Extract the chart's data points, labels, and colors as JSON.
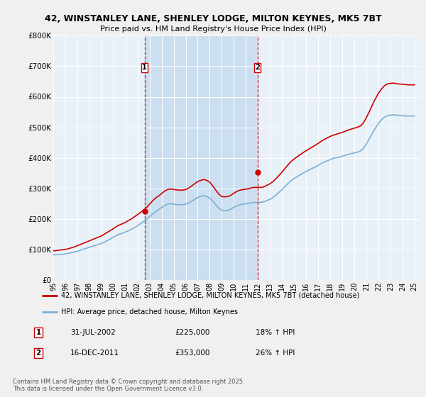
{
  "title": "42, WINSTANLEY LANE, SHENLEY LODGE, MILTON KEYNES, MK5 7BT",
  "subtitle": "Price paid vs. HM Land Registry's House Price Index (HPI)",
  "ylim": [
    0,
    800000
  ],
  "yticks": [
    0,
    100000,
    200000,
    300000,
    400000,
    500000,
    600000,
    700000,
    800000
  ],
  "ytick_labels": [
    "£0",
    "£100K",
    "£200K",
    "£300K",
    "£400K",
    "£500K",
    "£600K",
    "£700K",
    "£800K"
  ],
  "xlim_start": 1995.0,
  "xlim_end": 2025.5,
  "background_color": "#f0f0f0",
  "plot_bg_color": "#e8f0f8",
  "grid_color": "#ffffff",
  "red_line_color": "#cc0000",
  "blue_line_color": "#7db0d4",
  "shade_color": "#ccdff0",
  "marker1_x": 2002.58,
  "marker1_y": 225000,
  "marker1_label": "1",
  "marker1_date": "31-JUL-2002",
  "marker1_price": "£225,000",
  "marker1_hpi": "18% ↑ HPI",
  "marker2_x": 2011.96,
  "marker2_y": 353000,
  "marker2_label": "2",
  "marker2_date": "16-DEC-2011",
  "marker2_price": "£353,000",
  "marker2_hpi": "26% ↑ HPI",
  "legend_line1": "42, WINSTANLEY LANE, SHENLEY LODGE, MILTON KEYNES, MK5 7BT (detached house)",
  "legend_line2": "HPI: Average price, detached house, Milton Keynes",
  "footnote": "Contains HM Land Registry data © Crown copyright and database right 2025.\nThis data is licensed under the Open Government Licence v3.0.",
  "hpi_values": [
    82000,
    82500,
    83000,
    84000,
    85000,
    87000,
    89000,
    91500,
    94000,
    97000,
    100500,
    103500,
    107000,
    110000,
    113000,
    116000,
    119500,
    124000,
    129000,
    134500,
    140000,
    145500,
    150000,
    153000,
    157000,
    161000,
    166000,
    171500,
    177000,
    184000,
    191500,
    198500,
    207000,
    216000,
    224000,
    230000,
    237000,
    244000,
    248000,
    250000,
    248000,
    247000,
    246000,
    246000,
    248000,
    252000,
    258000,
    264000,
    270000,
    274000,
    276000,
    273000,
    268000,
    258000,
    246000,
    235000,
    228000,
    227000,
    228000,
    232000,
    238000,
    243000,
    246000,
    248000,
    249000,
    251000,
    253000,
    254000,
    254000,
    254000,
    256000,
    260000,
    264000,
    270000,
    278000,
    287000,
    296000,
    306000,
    316000,
    325000,
    332000,
    338000,
    344000,
    350000,
    355000,
    360000,
    365000,
    370000,
    375000,
    381000,
    386000,
    390000,
    394000,
    398000,
    400000,
    402000,
    405000,
    408000,
    411000,
    414000,
    416000,
    418000,
    422000,
    430000,
    445000,
    462000,
    480000,
    497000,
    512000,
    524000,
    533000,
    538000,
    540000,
    541000,
    540000,
    539000,
    538000,
    537000,
    537000,
    537000,
    537000
  ],
  "red_values": [
    95000,
    96000,
    97500,
    98500,
    100000,
    102000,
    105000,
    108000,
    112000,
    116000,
    120000,
    124000,
    128000,
    132000,
    136000,
    140000,
    144000,
    150000,
    156000,
    162000,
    168000,
    175000,
    180000,
    184000,
    189000,
    194500,
    200000,
    207000,
    214000,
    221000,
    229000,
    237000,
    248000,
    259000,
    268000,
    275000,
    283000,
    291000,
    296000,
    298000,
    296000,
    295000,
    294000,
    294000,
    296000,
    301000,
    308000,
    315000,
    322000,
    326000,
    329000,
    326000,
    320000,
    308000,
    294000,
    281000,
    273000,
    272000,
    273000,
    277000,
    284000,
    290000,
    294000,
    296000,
    297000,
    299000,
    302000,
    303000,
    303000,
    303000,
    305000,
    310000,
    315000,
    322000,
    332000,
    342000,
    353000,
    365000,
    377000,
    388000,
    396000,
    403000,
    410000,
    417000,
    423000,
    429000,
    435000,
    441000,
    447000,
    454000,
    460000,
    465000,
    470000,
    474000,
    477000,
    480000,
    483000,
    487000,
    491000,
    494000,
    497000,
    500000,
    504000,
    514000,
    531000,
    551000,
    573000,
    593000,
    611000,
    625000,
    636000,
    642000,
    644000,
    645000,
    643000,
    642000,
    641000,
    640000,
    639000,
    639000,
    639000
  ]
}
